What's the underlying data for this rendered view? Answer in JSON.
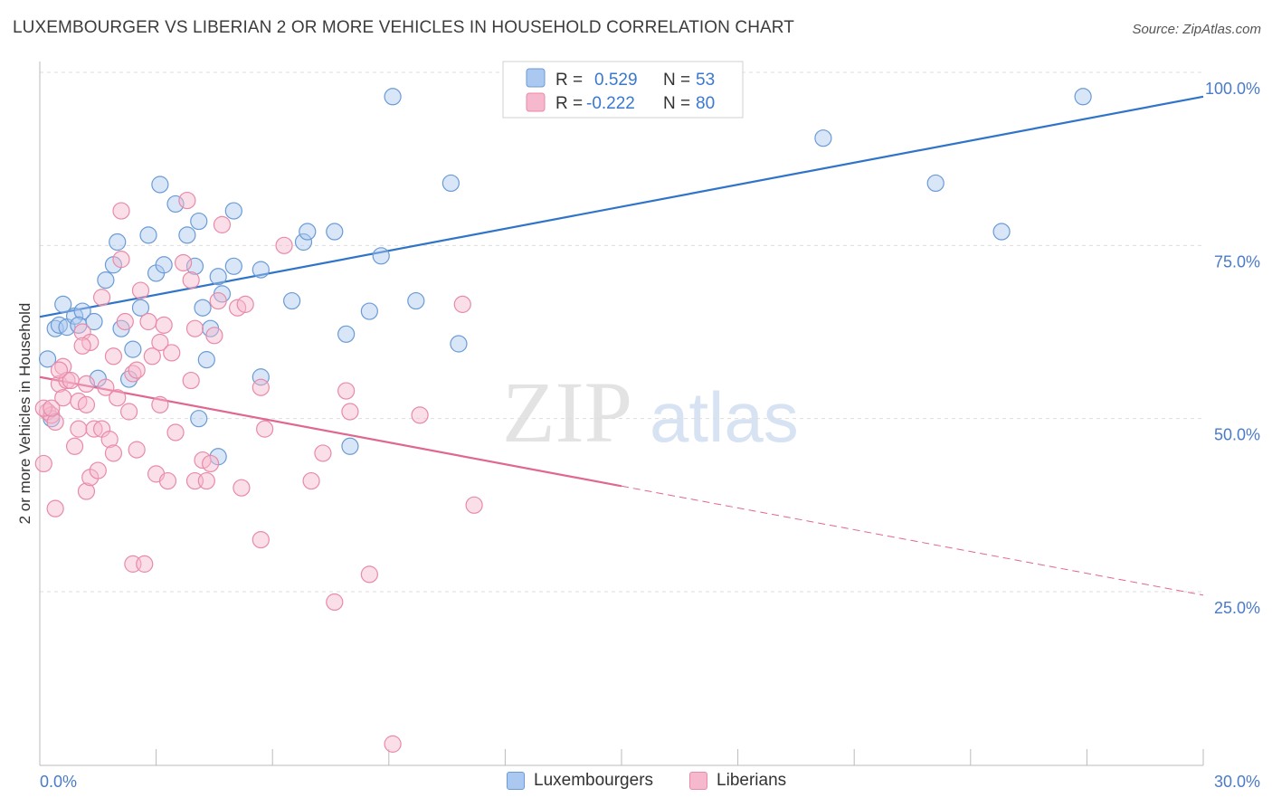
{
  "title": "LUXEMBOURGER VS LIBERIAN 2 OR MORE VEHICLES IN HOUSEHOLD CORRELATION CHART",
  "source": "Source: ZipAtlas.com",
  "watermark": {
    "zip": "ZIP",
    "atlas": "atlas"
  },
  "colors": {
    "blue_fill": "#aac8f0",
    "blue_stroke": "#6a9bd6",
    "blue_line": "#2f74c8",
    "pink_fill": "#f6b8cc",
    "pink_stroke": "#e88aa8",
    "pink_line": "#e0678f",
    "tick_text": "#4a7bc8",
    "grid": "#dddddd"
  },
  "legend_box": {
    "rows": [
      {
        "r_label": "R = ",
        "r_value": "0.529",
        "n_label": "N = ",
        "n_value": "53"
      },
      {
        "r_label": "R = ",
        "r_value": "-0.222",
        "n_label": "N = ",
        "n_value": "80"
      }
    ]
  },
  "bottom_legend": [
    "Luxembourgers",
    "Liberians"
  ],
  "chart_data": {
    "type": "scatter",
    "title": "LUXEMBOURGER VS LIBERIAN 2 OR MORE VEHICLES IN HOUSEHOLD CORRELATION CHART",
    "xlabel": "",
    "ylabel": "2 or more Vehicles in Household",
    "xlim": [
      0,
      30
    ],
    "ylim": [
      0,
      100
    ],
    "x_tick_labels": [
      "0.0%",
      "30.0%"
    ],
    "y_ticks": [
      25,
      50,
      75,
      100
    ],
    "y_tick_labels": [
      "25.0%",
      "50.0%",
      "75.0%",
      "100.0%"
    ],
    "grid": true,
    "legend_position": "top-center",
    "series": [
      {
        "name": "Luxembourgers",
        "color": "#aac8f0",
        "trend": {
          "x": [
            0,
            30
          ],
          "y": [
            64.7,
            96.5
          ],
          "solid_until": 30
        },
        "points": [
          [
            0.2,
            58.6
          ],
          [
            0.3,
            50.0
          ],
          [
            0.4,
            63.0
          ],
          [
            0.5,
            63.5
          ],
          [
            0.6,
            66.5
          ],
          [
            0.7,
            63.2
          ],
          [
            0.9,
            64.8
          ],
          [
            1.1,
            65.5
          ],
          [
            1.5,
            55.8
          ],
          [
            1.0,
            63.5
          ],
          [
            1.4,
            64.0
          ],
          [
            1.7,
            70.0
          ],
          [
            1.9,
            72.2
          ],
          [
            2.0,
            75.5
          ],
          [
            2.1,
            63.0
          ],
          [
            2.3,
            55.7
          ],
          [
            2.4,
            60.0
          ],
          [
            2.6,
            66.0
          ],
          [
            2.8,
            76.5
          ],
          [
            3.0,
            71.0
          ],
          [
            3.1,
            83.8
          ],
          [
            3.2,
            72.2
          ],
          [
            3.5,
            81.0
          ],
          [
            3.8,
            76.5
          ],
          [
            4.0,
            72.0
          ],
          [
            4.1,
            78.5
          ],
          [
            4.2,
            66.0
          ],
          [
            4.3,
            58.5
          ],
          [
            4.4,
            63.0
          ],
          [
            4.6,
            70.5
          ],
          [
            4.7,
            68.0
          ],
          [
            5.0,
            72.0
          ],
          [
            5.0,
            80.0
          ],
          [
            4.6,
            44.5
          ],
          [
            5.7,
            71.5
          ],
          [
            5.7,
            56.0
          ],
          [
            6.5,
            67.0
          ],
          [
            6.8,
            75.5
          ],
          [
            6.9,
            77.0
          ],
          [
            7.6,
            77.0
          ],
          [
            7.9,
            62.2
          ],
          [
            8.0,
            46.0
          ],
          [
            8.5,
            65.5
          ],
          [
            8.8,
            73.5
          ],
          [
            9.1,
            96.5
          ],
          [
            9.7,
            67.0
          ],
          [
            10.6,
            84.0
          ],
          [
            10.8,
            60.8
          ],
          [
            20.2,
            90.5
          ],
          [
            23.1,
            84.0
          ],
          [
            24.8,
            77.0
          ],
          [
            26.9,
            96.5
          ],
          [
            4.1,
            50.0
          ]
        ]
      },
      {
        "name": "Liberians",
        "color": "#f6b8cc",
        "trend": {
          "x": [
            0,
            30
          ],
          "y": [
            56.0,
            24.5
          ],
          "solid_until": 15.0
        },
        "points": [
          [
            0.1,
            43.5
          ],
          [
            0.2,
            51.0
          ],
          [
            0.3,
            50.5
          ],
          [
            0.4,
            49.5
          ],
          [
            0.4,
            37.0
          ],
          [
            0.5,
            55.0
          ],
          [
            0.6,
            53.0
          ],
          [
            0.6,
            57.5
          ],
          [
            0.7,
            55.5
          ],
          [
            0.8,
            55.5
          ],
          [
            0.9,
            46.0
          ],
          [
            1.0,
            48.5
          ],
          [
            1.0,
            52.5
          ],
          [
            1.1,
            62.5
          ],
          [
            1.2,
            52.0
          ],
          [
            1.2,
            39.5
          ],
          [
            1.3,
            61.0
          ],
          [
            1.3,
            41.5
          ],
          [
            1.4,
            48.5
          ],
          [
            1.5,
            42.5
          ],
          [
            1.6,
            48.5
          ],
          [
            1.6,
            67.5
          ],
          [
            1.7,
            54.5
          ],
          [
            1.8,
            47.0
          ],
          [
            1.9,
            45.0
          ],
          [
            1.9,
            59.0
          ],
          [
            2.0,
            53.0
          ],
          [
            2.1,
            80.0
          ],
          [
            2.1,
            73.0
          ],
          [
            2.2,
            64.0
          ],
          [
            2.3,
            51.0
          ],
          [
            2.4,
            29.0
          ],
          [
            2.4,
            56.5
          ],
          [
            2.5,
            45.5
          ],
          [
            2.5,
            57.0
          ],
          [
            2.6,
            68.5
          ],
          [
            2.7,
            29.0
          ],
          [
            2.8,
            64.0
          ],
          [
            2.9,
            59.0
          ],
          [
            3.0,
            42.0
          ],
          [
            3.1,
            52.0
          ],
          [
            3.1,
            61.0
          ],
          [
            3.2,
            63.5
          ],
          [
            3.3,
            41.0
          ],
          [
            3.4,
            59.5
          ],
          [
            3.5,
            48.0
          ],
          [
            3.7,
            72.5
          ],
          [
            3.8,
            81.5
          ],
          [
            3.9,
            70.0
          ],
          [
            3.9,
            55.5
          ],
          [
            4.0,
            63.0
          ],
          [
            4.0,
            41.0
          ],
          [
            4.2,
            44.0
          ],
          [
            4.3,
            41.0
          ],
          [
            4.4,
            43.5
          ],
          [
            4.5,
            62.0
          ],
          [
            4.6,
            67.0
          ],
          [
            4.7,
            78.0
          ],
          [
            5.1,
            66.0
          ],
          [
            5.2,
            40.0
          ],
          [
            5.3,
            66.5
          ],
          [
            5.7,
            54.5
          ],
          [
            5.7,
            32.5
          ],
          [
            5.8,
            48.5
          ],
          [
            6.3,
            75.0
          ],
          [
            7.0,
            41.0
          ],
          [
            7.3,
            45.0
          ],
          [
            7.6,
            23.5
          ],
          [
            7.9,
            54.0
          ],
          [
            8.0,
            51.0
          ],
          [
            8.5,
            27.5
          ],
          [
            9.1,
            3.0
          ],
          [
            9.8,
            50.5
          ],
          [
            10.9,
            66.5
          ],
          [
            11.2,
            37.5
          ],
          [
            0.1,
            51.5
          ],
          [
            0.3,
            51.5
          ],
          [
            0.5,
            57.0
          ],
          [
            1.1,
            60.5
          ],
          [
            1.2,
            55.0
          ]
        ]
      }
    ]
  }
}
